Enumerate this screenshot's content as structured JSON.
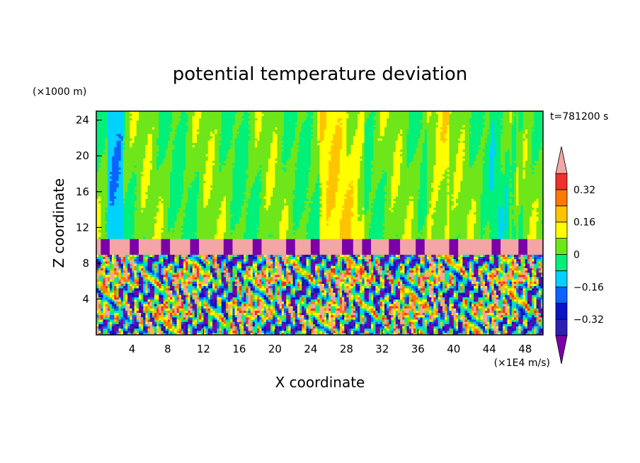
{
  "chart_data": {
    "type": "heatmap",
    "title": "potential temperature deviation",
    "xlabel": "X coordinate",
    "ylabel": "Z coordinate",
    "x_unit": "(×1E4 m/s)",
    "y_unit": "(×1000 m)",
    "time_label": "t=781200 s",
    "x_range": [
      0,
      50
    ],
    "y_range": [
      0,
      25
    ],
    "x_ticks": [
      "4",
      "8",
      "12",
      "16",
      "20",
      "24",
      "28",
      "32",
      "36",
      "40",
      "44",
      "48"
    ],
    "x_tick_values": [
      4,
      8,
      12,
      16,
      20,
      24,
      28,
      32,
      36,
      40,
      44,
      48
    ],
    "y_ticks": [
      "4",
      "8",
      "12",
      "16",
      "20",
      "24"
    ],
    "y_tick_values": [
      4,
      8,
      12,
      16,
      20,
      24
    ],
    "grid": false,
    "colorbar": {
      "position": "right",
      "levels": [
        -0.4,
        -0.32,
        -0.24,
        -0.16,
        -0.08,
        0,
        0.08,
        0.16,
        0.24,
        0.32,
        0.4
      ],
      "colors": [
        "#7b00a8",
        "#2d1fb4",
        "#0a13c8",
        "#0a64ff",
        "#00d2ff",
        "#00f07a",
        "#6ee61a",
        "#ffff00",
        "#ffc400",
        "#ff7a00",
        "#f0302c",
        "#f4a5a5"
      ],
      "labels": [
        "0.32",
        "0.16",
        "0",
        "−0.16",
        "−0.32"
      ],
      "label_values": [
        0.32,
        0.16,
        0,
        -0.16,
        -0.32
      ],
      "extend": "both"
    },
    "regions": [
      {
        "z": [
          10.8,
          25
        ],
        "dominant_values": [
          0,
          0.08,
          0.12,
          -0.1
        ]
      },
      {
        "z": [
          9,
          10.8
        ],
        "dominant_values": [
          0.45,
          -0.45
        ]
      },
      {
        "z": [
          0,
          9
        ],
        "dominant_values": [
          -0.4,
          -0.3,
          -0.1,
          0,
          0.1,
          0.2,
          0.3
        ]
      }
    ]
  }
}
